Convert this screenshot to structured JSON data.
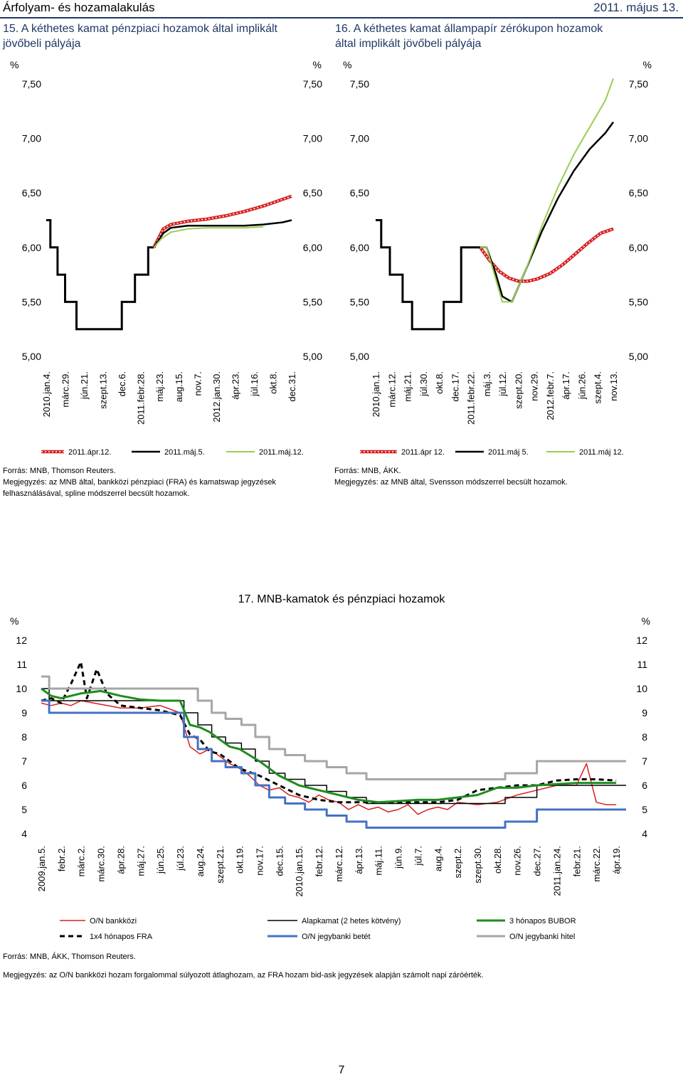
{
  "header": {
    "left": "Árfolyam- és hozamalakulás",
    "right": "2011. május 13."
  },
  "chart15": {
    "title_line1": "15. A kéthetes kamat pénzpiaci hozamok által implikált",
    "title_line2": "jövőbeli pályája",
    "source": "Forrás: MNB, Thomson Reuters.",
    "note_line1": "Megjegyzés: az MNB által, bankközi pénzpiaci (FRA) és kamatswap jegyzések",
    "note_line2": "felhasználásával, spline módszerrel becsült hozamok."
  },
  "chart16": {
    "title_line1": "16. A kéthetes kamat állampapír zérókupon hozamok",
    "title_line2": "által implikált jövőbeli pályája",
    "source": "Forrás: MNB, ÁKK.",
    "note_line1": "Megjegyzés: az MNB által, Svensson módszerrel becsült hozamok."
  },
  "chart17": {
    "title": "17. MNB-kamatok és pénzpiaci hozamok",
    "source": "Forrás: MNB, ÁKK, Thomson Reuters.",
    "note_line1": "Megjegyzés: az O/N bankközi hozam forgalommal súlyozott átlaghozam, az FRA hozam bid-ask jegyzések alapján számolt napi záróérték."
  },
  "page_number": "7",
  "colors": {
    "red": "#d62020",
    "black": "#000000",
    "lightgreen": "#9acd55",
    "green": "#1e8c1e",
    "blue": "#4472c4",
    "gray": "#a6a6a6",
    "title": "#1f3864"
  },
  "chart_data": [
    {
      "id": "c15",
      "type": "line",
      "title": "15. A kéthetes kamat pénzpiaci hozamok által implikált jövőbeli pályája",
      "ylabel_left": "%",
      "ylabel_right": "%",
      "ylim": [
        5.0,
        7.5
      ],
      "yticks": [
        "5,00",
        "5,50",
        "6,00",
        "6,50",
        "7,00",
        "7,50"
      ],
      "ytick_values": [
        5.0,
        5.5,
        6.0,
        6.5,
        7.0,
        7.5
      ],
      "categories": [
        "2010.jan.4.",
        "márc.29.",
        "jún.21.",
        "szept.13.",
        "dec.6.",
        "2011.febr.28.",
        "máj.23.",
        "aug.15.",
        "nov.7.",
        "2012.jan.30.",
        "ápr.23.",
        "júl.16.",
        "okt.8.",
        "dec.31."
      ],
      "history": {
        "name": "Alapkamat",
        "x": [
          0,
          0.22,
          0.22,
          0.6,
          0.6,
          1.0,
          1.0,
          1.3,
          1.3,
          1.6,
          1.6,
          4.0,
          4.0,
          4.7,
          4.7,
          5.4,
          5.4,
          5.7
        ],
        "values": [
          6.25,
          6.25,
          6.0,
          6.0,
          5.75,
          5.75,
          5.5,
          5.5,
          5.5,
          5.5,
          5.25,
          5.25,
          5.5,
          5.5,
          5.75,
          5.75,
          6.0,
          6.0
        ]
      },
      "series": [
        {
          "name": "2011.ápr.12.",
          "style": "red-dotted",
          "x": [
            5.7,
            6.2,
            6.6,
            7.5,
            8.5,
            9.5,
            10.5,
            11.5,
            12.5,
            13.0
          ],
          "values": [
            6.0,
            6.17,
            6.21,
            6.24,
            6.26,
            6.29,
            6.33,
            6.38,
            6.44,
            6.47
          ]
        },
        {
          "name": "2011.máj.5.",
          "style": "black",
          "x": [
            5.7,
            6.2,
            6.6,
            7.5,
            8.5,
            9.5,
            10.5,
            11.5,
            12.5,
            13.0
          ],
          "values": [
            6.0,
            6.13,
            6.18,
            6.2,
            6.2,
            6.2,
            6.2,
            6.21,
            6.23,
            6.25
          ]
        },
        {
          "name": "2011.máj.12.",
          "style": "lightgreen",
          "x": [
            5.7,
            6.1,
            6.6,
            7.5,
            8.5,
            9.5,
            10.5,
            11.5
          ],
          "values": [
            6.0,
            6.08,
            6.14,
            6.17,
            6.18,
            6.18,
            6.18,
            6.19
          ]
        }
      ]
    },
    {
      "id": "c16",
      "type": "line",
      "title": "16. A kéthetes kamat állampapír zérókupon hozamok által implikált jövőbeli pályája",
      "ylabel_left": "%",
      "ylabel_right": "%",
      "ylim": [
        5.0,
        7.5
      ],
      "yticks": [
        "5,00",
        "5,50",
        "6,00",
        "6,50",
        "7,00",
        "7,50"
      ],
      "ytick_values": [
        5.0,
        5.5,
        6.0,
        6.5,
        7.0,
        7.5
      ],
      "categories": [
        "2010.jan.1.",
        "márc.12.",
        "máj.21.",
        "júl.30.",
        "okt.8.",
        "dec.17.",
        "2011.febr.22.",
        "máj.3.",
        "júl.12.",
        "szept.20.",
        "nov.29.",
        "2012.febr.7.",
        "ápr.17.",
        "jún.26.",
        "szept.4.",
        "nov.13."
      ],
      "history": {
        "name": "Alapkamat",
        "x": [
          0,
          0.35,
          0.35,
          0.9,
          0.9,
          1.7,
          1.7,
          2.3,
          2.3,
          3.1,
          3.1,
          4.3,
          4.3,
          5.4,
          5.4,
          6.6
        ],
        "values": [
          6.25,
          6.25,
          6.0,
          6.0,
          5.75,
          5.75,
          5.5,
          5.5,
          5.25,
          5.25,
          5.25,
          5.25,
          5.5,
          5.5,
          6.0,
          6.0
        ]
      },
      "series": [
        {
          "name": "2011.ápr 12.",
          "style": "red-dotted",
          "x": [
            6.6,
            7.2,
            7.8,
            8.4,
            9.0,
            9.6,
            10.2,
            11.0,
            11.8,
            12.6,
            13.4,
            14.2,
            15.0
          ],
          "values": [
            6.0,
            5.88,
            5.78,
            5.72,
            5.69,
            5.69,
            5.71,
            5.76,
            5.84,
            5.94,
            6.04,
            6.13,
            6.17
          ]
        },
        {
          "name": "2011.máj 5.",
          "style": "black",
          "x": [
            6.6,
            7.0,
            7.6,
            8.0,
            8.6,
            9.5,
            10.5,
            11.5,
            12.5,
            13.5,
            14.5,
            15.0
          ],
          "values": [
            6.0,
            6.0,
            5.75,
            5.55,
            5.5,
            5.8,
            6.15,
            6.45,
            6.7,
            6.9,
            7.05,
            7.15
          ]
        },
        {
          "name": "2011.máj 12.",
          "style": "lightgreen",
          "x": [
            6.6,
            7.0,
            7.6,
            8.0,
            8.6,
            9.5,
            10.5,
            11.5,
            12.5,
            13.5,
            14.5,
            15.0
          ],
          "values": [
            6.0,
            6.0,
            5.7,
            5.5,
            5.5,
            5.8,
            6.2,
            6.55,
            6.85,
            7.1,
            7.35,
            7.55
          ]
        }
      ]
    },
    {
      "id": "c17",
      "type": "line",
      "title": "17. MNB-kamatok és pénzpiaci hozamok",
      "ylabel_left": "%",
      "ylabel_right": "%",
      "ylim": [
        4,
        12
      ],
      "yticks": [
        "4",
        "5",
        "6",
        "7",
        "8",
        "9",
        "10",
        "11",
        "12"
      ],
      "ytick_values": [
        4,
        5,
        6,
        7,
        8,
        9,
        10,
        11,
        12
      ],
      "categories": [
        "2009.jan.5.",
        "febr.2.",
        "márc.2.",
        "márc.30.",
        "ápr.28.",
        "máj.27.",
        "jún.25.",
        "júl.23.",
        "aug.24.",
        "szept.21.",
        "okt.19.",
        "nov.17.",
        "dec.15.",
        "2010.jan.15.",
        "febr.12.",
        "márc.12.",
        "ápr.13.",
        "máj.11.",
        "jún.9.",
        "júl.7.",
        "aug.4.",
        "szept.2.",
        "szept.30.",
        "okt.28.",
        "nov.26.",
        "dec.27.",
        "2011.jan.24.",
        "febr.21.",
        "márc.22.",
        "ápr.19."
      ],
      "series": [
        {
          "name": "O/N bankközi",
          "style": "red",
          "x": [
            0,
            0.5,
            1,
            1.5,
            2,
            3,
            4,
            5,
            6,
            7,
            7.5,
            8,
            8.5,
            9,
            9.5,
            10,
            10.5,
            11,
            11.5,
            12,
            12.5,
            13,
            13.5,
            14,
            14.5,
            15,
            15.5,
            16,
            16.5,
            17,
            17.5,
            18,
            18.5,
            19,
            19.5,
            20,
            20.5,
            21,
            22,
            23,
            24,
            25,
            26,
            27,
            27.5,
            28,
            28.5,
            29
          ],
          "values": [
            9.4,
            9.3,
            9.4,
            9.3,
            9.5,
            9.35,
            9.2,
            9.2,
            9.3,
            9.0,
            7.6,
            7.3,
            7.5,
            7.2,
            6.9,
            6.7,
            6.4,
            6.0,
            5.8,
            5.9,
            5.6,
            5.5,
            5.3,
            5.6,
            5.4,
            5.3,
            5.0,
            5.2,
            5.0,
            5.1,
            4.9,
            5.0,
            5.2,
            4.8,
            5.0,
            5.1,
            5.0,
            5.3,
            5.2,
            5.3,
            5.6,
            5.8,
            6.0,
            6.0,
            6.9,
            5.3,
            5.2,
            5.2
          ]
        },
        {
          "name": "1x4 hónapos FRA",
          "style": "black-dashed",
          "x": [
            0,
            0.5,
            1,
            1.5,
            2,
            2.3,
            2.8,
            3.3,
            4,
            5,
            6,
            7,
            7.5,
            8,
            8.5,
            9,
            9.5,
            10,
            11,
            12,
            13,
            14,
            15,
            16,
            17,
            18,
            19,
            20,
            21,
            22,
            23,
            24,
            25,
            26,
            27,
            28,
            29
          ],
          "values": [
            9.5,
            9.6,
            9.4,
            10.2,
            11.1,
            9.6,
            10.8,
            9.8,
            9.3,
            9.2,
            9.1,
            8.9,
            8.1,
            7.9,
            7.4,
            7.3,
            7.0,
            6.7,
            6.4,
            6.0,
            5.6,
            5.4,
            5.3,
            5.3,
            5.3,
            5.3,
            5.3,
            5.3,
            5.4,
            5.8,
            5.9,
            6.0,
            6.0,
            6.2,
            6.25,
            6.25,
            6.2
          ]
        },
        {
          "name": "Alapkamat (2 hetes kötvény)",
          "style": "black-step",
          "x": [
            0,
            0.4,
            0.4,
            7.2,
            7.2,
            7.9,
            7.9,
            8.6,
            8.6,
            9.3,
            9.3,
            10.1,
            10.1,
            10.8,
            10.8,
            11.5,
            11.5,
            12.3,
            12.3,
            13.3,
            13.3,
            14.4,
            14.4,
            15.4,
            15.4,
            16.4,
            16.4,
            23.4,
            23.4,
            25.0,
            25.0,
            29.5
          ],
          "values": [
            10.0,
            10.0,
            9.5,
            9.5,
            9.0,
            9.0,
            8.5,
            8.5,
            8.0,
            8.0,
            7.75,
            7.75,
            7.5,
            7.5,
            7.0,
            7.0,
            6.5,
            6.5,
            6.25,
            6.25,
            6.0,
            6.0,
            5.75,
            5.75,
            5.5,
            5.5,
            5.25,
            5.25,
            5.5,
            5.5,
            6.0,
            6.0
          ]
        },
        {
          "name": "O/N jegybanki betét",
          "style": "blue-step",
          "x": [
            0,
            0.4,
            0.4,
            7.2,
            7.2,
            7.9,
            7.9,
            8.6,
            8.6,
            9.3,
            9.3,
            10.1,
            10.1,
            10.8,
            10.8,
            11.5,
            11.5,
            12.3,
            12.3,
            13.3,
            13.3,
            14.4,
            14.4,
            15.4,
            15.4,
            16.4,
            16.4,
            23.4,
            23.4,
            25.0,
            25.0,
            29.5
          ],
          "values": [
            9.5,
            9.5,
            9.0,
            9.0,
            8.0,
            8.0,
            7.5,
            7.5,
            7.0,
            7.0,
            6.75,
            6.75,
            6.5,
            6.5,
            6.0,
            6.0,
            5.5,
            5.5,
            5.25,
            5.25,
            5.0,
            5.0,
            4.75,
            4.75,
            4.5,
            4.5,
            4.25,
            4.25,
            4.5,
            4.5,
            5.0,
            5.0
          ]
        },
        {
          "name": "3 hónapos BUBOR",
          "style": "green",
          "x": [
            0,
            0.5,
            1,
            1.5,
            2,
            3,
            4,
            5,
            6,
            7,
            7.5,
            8,
            8.5,
            9,
            9.5,
            10,
            11,
            12,
            13,
            14,
            15,
            16,
            17,
            18,
            19,
            20,
            21,
            22,
            23,
            24,
            25,
            26,
            27,
            28,
            29
          ],
          "values": [
            10.0,
            9.7,
            9.6,
            9.7,
            9.8,
            9.9,
            9.7,
            9.55,
            9.5,
            9.5,
            8.5,
            8.4,
            8.2,
            7.9,
            7.6,
            7.5,
            7.0,
            6.4,
            6.0,
            5.8,
            5.6,
            5.4,
            5.3,
            5.35,
            5.4,
            5.4,
            5.5,
            5.6,
            5.9,
            5.9,
            6.0,
            6.05,
            6.1,
            6.1,
            6.1
          ]
        },
        {
          "name": "O/N jegybanki hitel",
          "style": "gray-step",
          "x": [
            0,
            0.4,
            0.4,
            7.2,
            7.2,
            7.9,
            7.9,
            8.6,
            8.6,
            9.3,
            9.3,
            10.1,
            10.1,
            10.8,
            10.8,
            11.5,
            11.5,
            12.3,
            12.3,
            13.3,
            13.3,
            14.4,
            14.4,
            15.4,
            15.4,
            16.4,
            16.4,
            23.4,
            23.4,
            25.0,
            25.0,
            29.5
          ],
          "values": [
            10.5,
            10.5,
            10.0,
            10.0,
            10.0,
            10.0,
            9.5,
            9.5,
            9.0,
            9.0,
            8.75,
            8.75,
            8.5,
            8.5,
            8.0,
            8.0,
            7.5,
            7.5,
            7.25,
            7.25,
            7.0,
            7.0,
            6.75,
            6.75,
            6.5,
            6.5,
            6.25,
            6.25,
            6.5,
            6.5,
            7.0,
            7.0
          ]
        }
      ]
    }
  ]
}
